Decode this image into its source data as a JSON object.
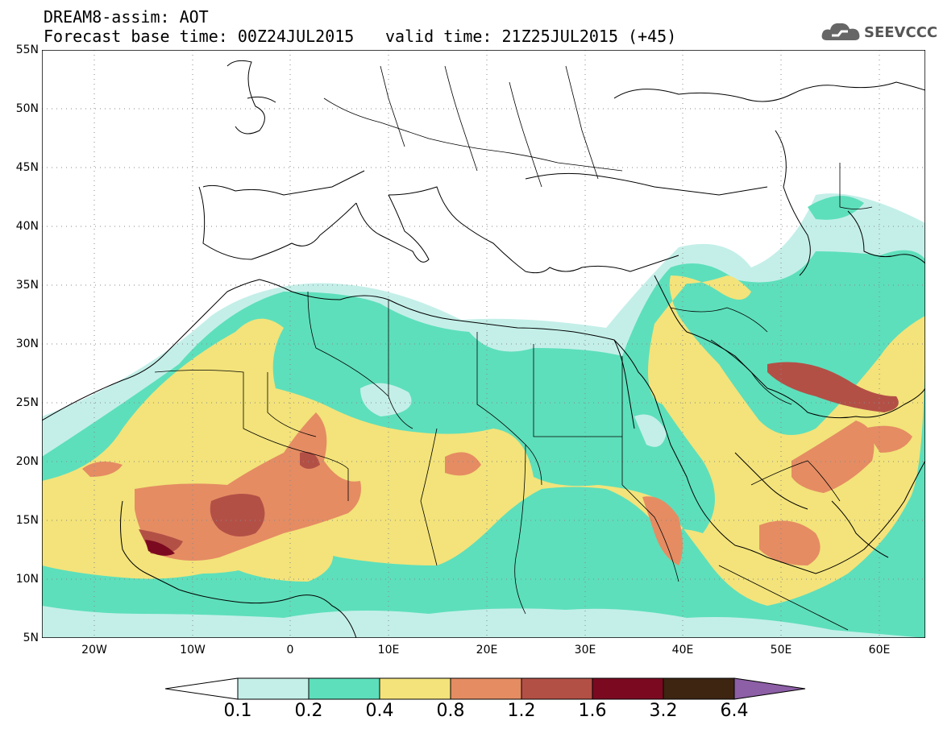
{
  "header": {
    "title_line1": "DREAM8-assim: AOT",
    "title_line2": "Forecast base time: 00Z24JUL2015",
    "valid_time": "valid time: 21Z25JUL2015 (+45)"
  },
  "logo": {
    "text": "SEEVCCC",
    "icon": "cloud-icon",
    "color": "#555555"
  },
  "map": {
    "lat_labels": [
      "55N",
      "50N",
      "45N",
      "40N",
      "35N",
      "30N",
      "25N",
      "20N",
      "15N",
      "10N",
      "5N"
    ],
    "lon_labels": [
      "20W",
      "10W",
      "0",
      "10E",
      "20E",
      "30E",
      "40E",
      "50E",
      "60E"
    ],
    "lat_range": [
      5,
      55
    ],
    "lon_range": [
      -25,
      65
    ],
    "grid": "dotted"
  },
  "legend": {
    "labels": [
      "0.1",
      "0.2",
      "0.4",
      "0.8",
      "1.2",
      "1.6",
      "3.2",
      "6.4"
    ],
    "colors": {
      "below": "#ffffff",
      "c1": "#c4efe9",
      "c2": "#5ddfbb",
      "c3": "#f3e37a",
      "c4": "#e58c63",
      "c5": "#b35046",
      "c6": "#7b0a20",
      "c7": "#3d2512",
      "above": "#8d5fa6"
    }
  }
}
